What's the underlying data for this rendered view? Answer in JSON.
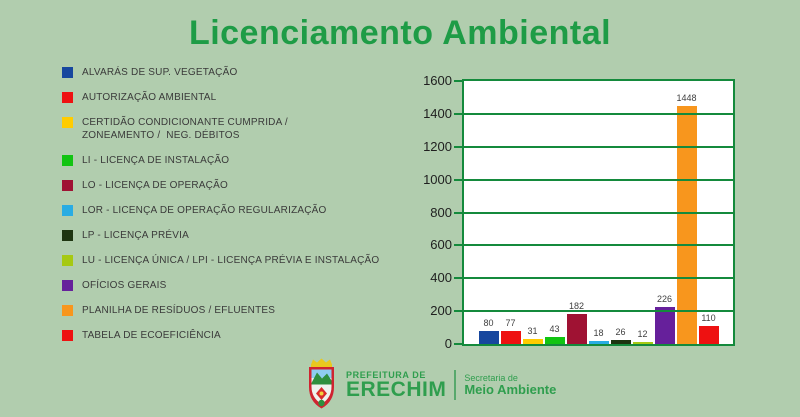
{
  "title": "Licenciamento Ambiental",
  "colors": {
    "background": "#b1cdae",
    "title_green": "#1e9c46",
    "chart_border_green": "#148a3c",
    "footer_green": "#2f9e4e",
    "plot_background": "#ffffff"
  },
  "legend": {
    "items": [
      {
        "label": "ALVARÁS DE SUP. VEGETAÇÃO",
        "color": "#17479e"
      },
      {
        "label": "AUTORIZAÇÃO AMBIENTAL",
        "color": "#ee1111"
      },
      {
        "label": "CERTIDÃO CONDICIONANTE CUMPRIDA /\nZONEAMENTO /  NEG. DÉBITOS",
        "color": "#ffcc00"
      },
      {
        "label": "LI - LICENÇA DE INSTALAÇÃO",
        "color": "#12c412"
      },
      {
        "label": "LO - LICENÇA DE OPERAÇÃO",
        "color": "#9f1233"
      },
      {
        "label": "LOR - LICENÇA DE OPERAÇÃO REGULARIZAÇÃO",
        "color": "#29ace3"
      },
      {
        "label": "LP - LICENÇA PRÉVIA",
        "color": "#1e3511"
      },
      {
        "label": "LU - LICENÇA ÚNICA / LPI - LICENÇA PRÉVIA E INSTALAÇÃO",
        "color": "#a6c913"
      },
      {
        "label": "OFÍCIOS GERAIS",
        "color": "#66209b"
      },
      {
        "label": "PLANILHA DE RESÍDUOS / EFLUENTES",
        "color": "#f8961d"
      },
      {
        "label": "TABELA DE ECOEFICIÊNCIA",
        "color": "#ee1111"
      }
    ]
  },
  "chart_data": {
    "type": "bar",
    "title": "Licenciamento Ambiental",
    "categories": [
      "ALVARÁS DE SUP. VEGETAÇÃO",
      "AUTORIZAÇÃO AMBIENTAL",
      "CERTIDÃO CONDICIONANTE CUMPRIDA / ZONEAMENTO / NEG. DÉBITOS",
      "LI - LICENÇA DE INSTALAÇÃO",
      "LO - LICENÇA DE OPERAÇÃO",
      "LOR - LICENÇA DE OPERAÇÃO REGULARIZAÇÃO",
      "LP - LICENÇA PRÉVIA",
      "LU - LICENÇA ÚNICA / LPI - LICENÇA PRÉVIA E INSTALAÇÃO",
      "OFÍCIOS GERAIS",
      "PLANILHA DE RESÍDUOS / EFLUENTES",
      "TABELA DE ECOEFICIÊNCIA"
    ],
    "values": [
      80,
      77,
      31,
      43,
      182,
      18,
      26,
      12,
      226,
      1448,
      110
    ],
    "bar_colors": [
      "#17479e",
      "#ee1111",
      "#ffcc00",
      "#12c412",
      "#9f1233",
      "#29ace3",
      "#1e3511",
      "#a6c913",
      "#66209b",
      "#f8961d",
      "#ee1111"
    ],
    "xlabel": "",
    "ylabel": "",
    "ylim": [
      0,
      1600
    ],
    "yticks": [
      0,
      200,
      400,
      600,
      800,
      1000,
      1200,
      1400,
      1600
    ],
    "grid": true,
    "legend_position": "left",
    "data_labels": true
  },
  "footer": {
    "org_top": "PREFEITURA DE",
    "org_name": "ERECHIM",
    "dept_top": "Secretaria de",
    "dept_name": "Meio Ambiente"
  }
}
